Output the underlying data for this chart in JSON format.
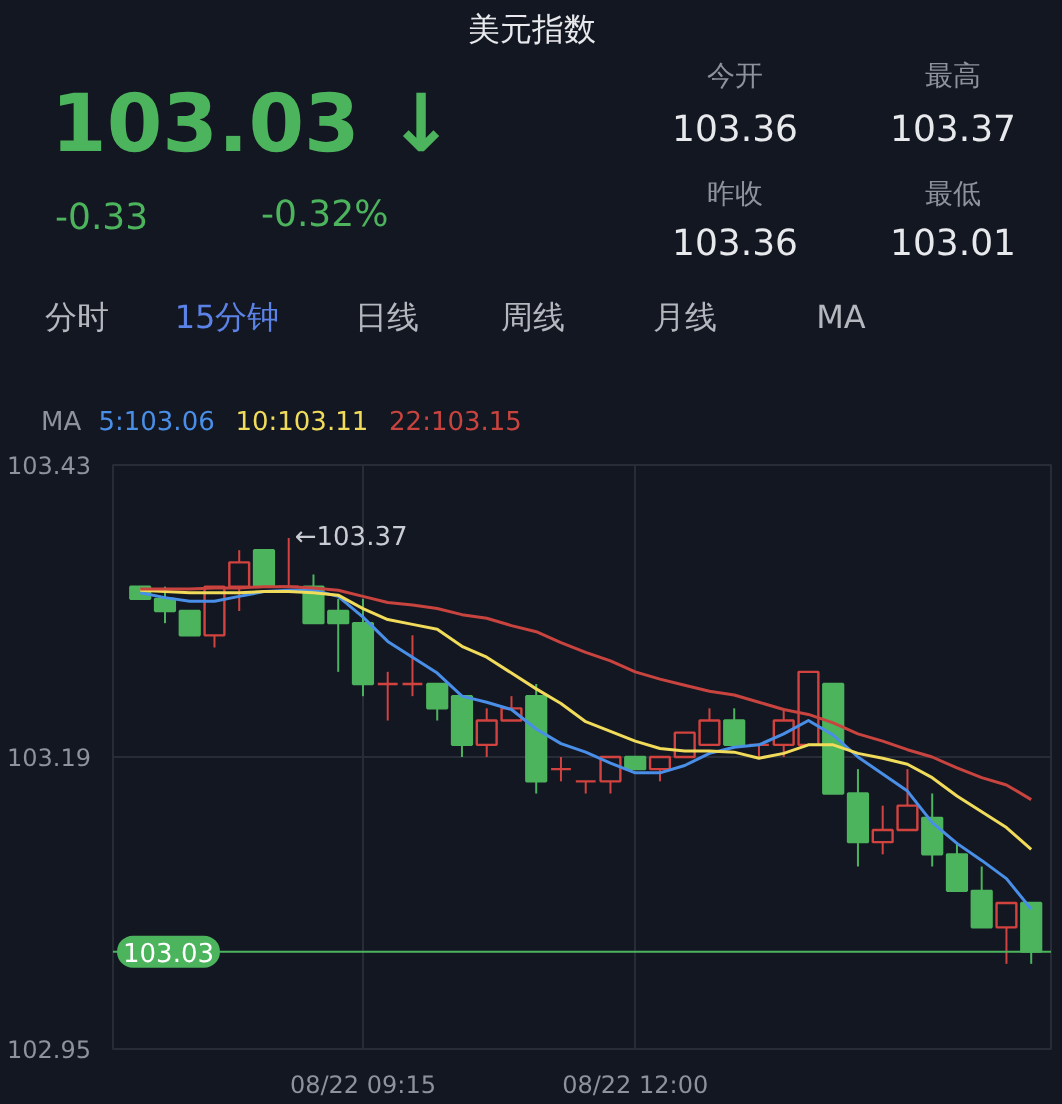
{
  "chart_data": {
    "type": "candlestick",
    "title": "美元指数",
    "annotations": [
      "103.03 ↓",
      "-0.33",
      "-0.32%",
      "今开",
      "103.36",
      "最高",
      "103.37",
      "昨收",
      "103.36",
      "最低",
      "103.01",
      "分时",
      "15分钟",
      "日线",
      "周线",
      "月线",
      "MA",
      "←103.37"
    ],
    "categories": [
      null,
      null,
      null,
      null,
      null,
      null,
      null,
      null,
      null,
      "08/22 09:15",
      null,
      null,
      null,
      null,
      null,
      null,
      null,
      null,
      null,
      null,
      "08/22 12:00",
      null,
      null,
      null,
      null,
      null,
      null,
      null,
      null,
      null,
      null,
      null,
      null,
      null,
      null,
      null,
      null
    ],
    "ohlc": [
      [
        103.33,
        103.33,
        103.32,
        103.32
      ],
      [
        103.32,
        103.33,
        103.3,
        103.31
      ],
      [
        103.31,
        103.31,
        103.29,
        103.29
      ],
      [
        103.29,
        103.33,
        103.28,
        103.33
      ],
      [
        103.33,
        103.36,
        103.31,
        103.35
      ],
      [
        103.36,
        103.36,
        103.33,
        103.33
      ],
      [
        103.33,
        103.37,
        103.33,
        103.33
      ],
      [
        103.33,
        103.34,
        103.3,
        103.3
      ],
      [
        103.31,
        103.32,
        103.26,
        103.3
      ],
      [
        103.3,
        103.32,
        103.24,
        103.25
      ],
      [
        103.25,
        103.26,
        103.22,
        103.25
      ],
      [
        103.25,
        103.29,
        103.24,
        103.25
      ],
      [
        103.25,
        103.25,
        103.22,
        103.23
      ],
      [
        103.24,
        103.24,
        103.19,
        103.2
      ],
      [
        103.2,
        103.23,
        103.19,
        103.22
      ],
      [
        103.22,
        103.24,
        103.22,
        103.23
      ],
      [
        103.24,
        103.25,
        103.16,
        103.17
      ],
      [
        103.18,
        103.19,
        103.17,
        103.18
      ],
      [
        103.17,
        103.17,
        103.16,
        103.17
      ],
      [
        103.17,
        103.19,
        103.16,
        103.19
      ],
      [
        103.19,
        103.19,
        103.18,
        103.18
      ],
      [
        103.18,
        103.19,
        103.17,
        103.19
      ],
      [
        103.19,
        103.21,
        103.19,
        103.21
      ],
      [
        103.2,
        103.23,
        103.2,
        103.22
      ],
      [
        103.22,
        103.23,
        103.2,
        103.2
      ],
      [
        103.2,
        103.2,
        103.19,
        103.2
      ],
      [
        103.2,
        103.23,
        103.19,
        103.22
      ],
      [
        103.2,
        103.26,
        103.2,
        103.26
      ],
      [
        103.25,
        103.25,
        103.16,
        103.16
      ],
      [
        103.16,
        103.18,
        103.1,
        103.12
      ],
      [
        103.12,
        103.15,
        103.11,
        103.13
      ],
      [
        103.13,
        103.18,
        103.13,
        103.15
      ],
      [
        103.14,
        103.16,
        103.1,
        103.11
      ],
      [
        103.11,
        103.12,
        103.08,
        103.08
      ],
      [
        103.08,
        103.1,
        103.05,
        103.05
      ],
      [
        103.05,
        103.07,
        103.02,
        103.07
      ],
      [
        103.07,
        103.07,
        103.02,
        103.03
      ]
    ],
    "colors": [
      "#4cb45c",
      "#4cb45c",
      "#4cb45c",
      "#d2433f",
      "#d2433f",
      "#4cb45c",
      "#d2433f",
      "#4cb45c",
      "#4cb45c",
      "#4cb45c",
      "#d2433f",
      "#d2433f",
      "#4cb45c",
      "#4cb45c",
      "#d2433f",
      "#d2433f",
      "#4cb45c",
      "#d2433f",
      "#d2433f",
      "#d2433f",
      "#4cb45c",
      "#d2433f",
      "#d2433f",
      "#d2433f",
      "#4cb45c",
      "#d2433f",
      "#d2433f",
      "#d2433f",
      "#4cb45c",
      "#4cb45c",
      "#d2433f",
      "#d2433f",
      "#4cb45c",
      "#4cb45c",
      "#4cb45c",
      "#d2433f",
      "#4cb45c"
    ],
    "series": [
      {
        "name": "5:103.06",
        "type": "line",
        "color": "#4a8fe7",
        "values": [
          103.325,
          103.321,
          103.318,
          103.318,
          103.322,
          103.326,
          103.327,
          103.327,
          103.322,
          103.305,
          103.285,
          103.272,
          103.259,
          103.24,
          103.235,
          103.229,
          103.213,
          103.201,
          103.194,
          103.185,
          103.177,
          103.177,
          103.183,
          103.193,
          103.198,
          103.2,
          103.209,
          103.22,
          103.208,
          103.19,
          103.176,
          103.162,
          103.136,
          103.119,
          103.105,
          103.09,
          103.065
        ]
      },
      {
        "name": "10:103.11",
        "type": "line",
        "color": "#f0dc5a",
        "values": [
          103.327,
          103.326,
          103.325,
          103.325,
          103.325,
          103.326,
          103.326,
          103.325,
          103.323,
          103.312,
          103.303,
          103.299,
          103.295,
          103.281,
          103.272,
          103.259,
          103.246,
          103.234,
          103.219,
          103.211,
          103.203,
          103.197,
          103.195,
          103.195,
          103.194,
          103.189,
          103.193,
          103.2,
          103.2,
          103.193,
          103.189,
          103.184,
          103.173,
          103.158,
          103.145,
          103.132,
          103.114
        ]
      },
      {
        "name": "22:103.15",
        "type": "line",
        "color": "#c9443f",
        "values": [
          103.328,
          103.328,
          103.328,
          103.329,
          103.329,
          103.33,
          103.33,
          103.329,
          103.327,
          103.322,
          103.317,
          103.315,
          103.312,
          103.307,
          103.304,
          103.298,
          103.293,
          103.284,
          103.276,
          103.269,
          103.26,
          103.254,
          103.249,
          103.244,
          103.241,
          103.235,
          103.229,
          103.225,
          103.218,
          103.209,
          103.203,
          103.196,
          103.19,
          103.181,
          103.173,
          103.167,
          103.155
        ]
      }
    ],
    "legend": "top left",
    "legend_title": "MA",
    "ylim": [
      102.95,
      103.43
    ],
    "yticks": [
      103.43,
      103.19,
      102.95
    ],
    "grid": true,
    "ref_lines": [
      {
        "axis": "y",
        "value": 103.03,
        "label": "103.03",
        "color": "#4cb45c"
      }
    ]
  }
}
